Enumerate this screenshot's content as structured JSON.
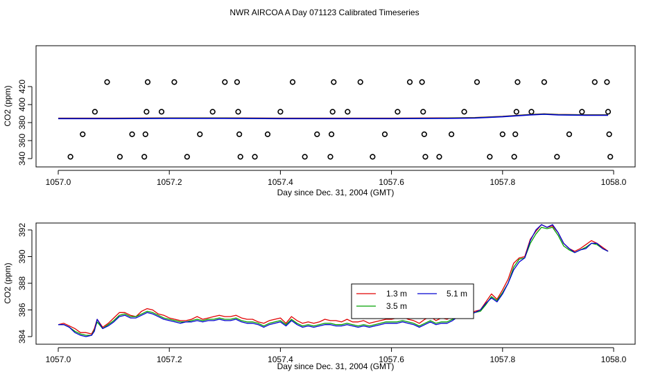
{
  "title": "NWR AIRCOA A  Day 071123  Calibrated Timeseries",
  "colors": {
    "red": "#e00000",
    "green": "#00a000",
    "blue": "#0000d0",
    "black": "#000000"
  },
  "chart_data": [
    {
      "type": "scatter",
      "xlabel": "Day since Dec. 31, 2004 (GMT)",
      "ylabel": "CO2 (ppm)",
      "xlim": [
        1057.0,
        1058.0
      ],
      "ylim": [
        340,
        420
      ],
      "xticks": [
        "1057.0",
        "1057.2",
        "1057.4",
        "1057.6",
        "1057.8",
        "1058.0"
      ],
      "yticks": [
        "340",
        "360",
        "380",
        "400",
        "420"
      ],
      "points": [
        {
          "x": 1057.022,
          "y": 342
        },
        {
          "x": 1057.044,
          "y": 367
        },
        {
          "x": 1057.066,
          "y": 392
        },
        {
          "x": 1057.088,
          "y": 425
        },
        {
          "x": 1057.111,
          "y": 342
        },
        {
          "x": 1057.133,
          "y": 367
        },
        {
          "x": 1057.155,
          "y": 342
        },
        {
          "x": 1057.157,
          "y": 367
        },
        {
          "x": 1057.159,
          "y": 392
        },
        {
          "x": 1057.161,
          "y": 425
        },
        {
          "x": 1057.186,
          "y": 392
        },
        {
          "x": 1057.209,
          "y": 425
        },
        {
          "x": 1057.232,
          "y": 342
        },
        {
          "x": 1057.255,
          "y": 367
        },
        {
          "x": 1057.278,
          "y": 392
        },
        {
          "x": 1057.3,
          "y": 425
        },
        {
          "x": 1057.322,
          "y": 425
        },
        {
          "x": 1057.324,
          "y": 392
        },
        {
          "x": 1057.326,
          "y": 367
        },
        {
          "x": 1057.328,
          "y": 342
        },
        {
          "x": 1057.354,
          "y": 342
        },
        {
          "x": 1057.377,
          "y": 367
        },
        {
          "x": 1057.4,
          "y": 392
        },
        {
          "x": 1057.422,
          "y": 425
        },
        {
          "x": 1057.444,
          "y": 342
        },
        {
          "x": 1057.466,
          "y": 367
        },
        {
          "x": 1057.49,
          "y": 342
        },
        {
          "x": 1057.492,
          "y": 367
        },
        {
          "x": 1057.494,
          "y": 392
        },
        {
          "x": 1057.496,
          "y": 425
        },
        {
          "x": 1057.521,
          "y": 392
        },
        {
          "x": 1057.544,
          "y": 425
        },
        {
          "x": 1057.566,
          "y": 342
        },
        {
          "x": 1057.588,
          "y": 367
        },
        {
          "x": 1057.611,
          "y": 392
        },
        {
          "x": 1057.633,
          "y": 425
        },
        {
          "x": 1057.655,
          "y": 425
        },
        {
          "x": 1057.657,
          "y": 392
        },
        {
          "x": 1057.659,
          "y": 367
        },
        {
          "x": 1057.661,
          "y": 342
        },
        {
          "x": 1057.686,
          "y": 342
        },
        {
          "x": 1057.708,
          "y": 367
        },
        {
          "x": 1057.731,
          "y": 392
        },
        {
          "x": 1057.754,
          "y": 425
        },
        {
          "x": 1057.777,
          "y": 342
        },
        {
          "x": 1057.8,
          "y": 367
        },
        {
          "x": 1057.821,
          "y": 342
        },
        {
          "x": 1057.823,
          "y": 367
        },
        {
          "x": 1057.825,
          "y": 392
        },
        {
          "x": 1057.827,
          "y": 425
        },
        {
          "x": 1057.852,
          "y": 392
        },
        {
          "x": 1057.875,
          "y": 425
        },
        {
          "x": 1057.898,
          "y": 342
        },
        {
          "x": 1057.92,
          "y": 367
        },
        {
          "x": 1057.943,
          "y": 392
        },
        {
          "x": 1057.966,
          "y": 425
        },
        {
          "x": 1057.988,
          "y": 425
        },
        {
          "x": 1057.99,
          "y": 392
        },
        {
          "x": 1057.992,
          "y": 367
        },
        {
          "x": 1057.994,
          "y": 342
        }
      ],
      "line_x": [
        1057.0,
        1057.1,
        1057.2,
        1057.3,
        1057.4,
        1057.5,
        1057.6,
        1057.7,
        1057.75,
        1057.8,
        1057.85,
        1057.875,
        1057.9,
        1057.95,
        1057.99
      ],
      "line_y": [
        385,
        385,
        385.5,
        385.5,
        385,
        385,
        385,
        385.5,
        386,
        388,
        391,
        392,
        391,
        390.5,
        390.5
      ]
    },
    {
      "type": "line",
      "xlabel": "Day since Dec. 31, 2004 (GMT)",
      "ylabel": "CO2 (ppm)",
      "xlim": [
        1057.0,
        1058.0
      ],
      "ylim": [
        383.8,
        393.0
      ],
      "xticks": [
        "1057.0",
        "1057.2",
        "1057.4",
        "1057.6",
        "1057.8",
        "1058.0"
      ],
      "yticks": [
        "384",
        "386",
        "388",
        "390",
        "392"
      ],
      "legend_position": "center-right",
      "x": [
        1057.0,
        1057.01,
        1057.02,
        1057.03,
        1057.04,
        1057.05,
        1057.06,
        1057.065,
        1057.07,
        1057.08,
        1057.09,
        1057.1,
        1057.11,
        1057.12,
        1057.13,
        1057.14,
        1057.15,
        1057.16,
        1057.17,
        1057.18,
        1057.19,
        1057.2,
        1057.21,
        1057.22,
        1057.23,
        1057.24,
        1057.25,
        1057.26,
        1057.27,
        1057.28,
        1057.29,
        1057.3,
        1057.31,
        1057.32,
        1057.33,
        1057.34,
        1057.35,
        1057.36,
        1057.37,
        1057.38,
        1057.39,
        1057.4,
        1057.41,
        1057.42,
        1057.43,
        1057.44,
        1057.45,
        1057.46,
        1057.47,
        1057.48,
        1057.49,
        1057.5,
        1057.51,
        1057.52,
        1057.53,
        1057.54,
        1057.55,
        1057.56,
        1057.57,
        1057.58,
        1057.59,
        1057.6,
        1057.61,
        1057.62,
        1057.63,
        1057.64,
        1057.65,
        1057.66,
        1057.67,
        1057.68,
        1057.69,
        1057.7,
        1057.71,
        1057.72,
        1057.73,
        1057.74,
        1057.75,
        1057.76,
        1057.77,
        1057.78,
        1057.79,
        1057.8,
        1057.81,
        1057.82,
        1057.83,
        1057.84,
        1057.85,
        1057.86,
        1057.87,
        1057.88,
        1057.89,
        1057.9,
        1057.91,
        1057.92,
        1057.93,
        1057.94,
        1057.95,
        1057.96,
        1057.97,
        1057.98,
        1057.99
      ],
      "series": [
        {
          "name": "1.3 m",
          "color": "#e00000",
          "values": [
            384.9,
            385.0,
            384.8,
            384.6,
            384.3,
            384.3,
            384.2,
            384.6,
            385.3,
            384.7,
            385.0,
            385.4,
            385.8,
            385.8,
            385.6,
            385.5,
            385.9,
            386.1,
            386.0,
            385.7,
            385.6,
            385.4,
            385.3,
            385.2,
            385.2,
            385.3,
            385.5,
            385.3,
            385.4,
            385.5,
            385.6,
            385.5,
            385.5,
            385.6,
            385.4,
            385.3,
            385.3,
            385.1,
            385.0,
            385.2,
            385.3,
            385.4,
            385.0,
            385.5,
            385.2,
            385.0,
            385.1,
            385.0,
            385.1,
            385.3,
            385.2,
            385.2,
            385.1,
            385.3,
            385.1,
            385.1,
            385.2,
            385.0,
            385.1,
            385.2,
            385.3,
            385.3,
            385.4,
            385.5,
            385.3,
            385.2,
            385.0,
            385.3,
            385.5,
            385.2,
            385.4,
            385.3,
            385.5,
            385.6,
            385.8,
            385.7,
            385.9,
            386.0,
            386.6,
            387.2,
            386.8,
            387.5,
            388.3,
            389.5,
            389.9,
            390.0,
            391.3,
            391.9,
            392.4,
            392.2,
            392.3,
            391.8,
            391.0,
            390.6,
            390.4,
            390.6,
            390.9,
            391.2,
            391.0,
            390.7,
            390.4
          ]
        },
        {
          "name": "3.5 m",
          "color": "#00a000",
          "values": [
            384.9,
            384.9,
            384.7,
            384.4,
            384.2,
            384.1,
            384.1,
            384.5,
            385.1,
            384.6,
            384.9,
            385.2,
            385.6,
            385.7,
            385.5,
            385.5,
            385.7,
            385.9,
            385.8,
            385.6,
            385.4,
            385.3,
            385.2,
            385.1,
            385.1,
            385.2,
            385.3,
            385.2,
            385.3,
            385.3,
            385.4,
            385.3,
            385.3,
            385.4,
            385.2,
            385.1,
            385.1,
            385.0,
            384.8,
            385.0,
            385.1,
            385.2,
            384.9,
            385.3,
            385.0,
            384.8,
            384.9,
            384.8,
            384.9,
            385.0,
            385.0,
            384.9,
            384.9,
            385.0,
            384.9,
            384.8,
            384.9,
            384.8,
            384.9,
            385.0,
            385.1,
            385.1,
            385.1,
            385.2,
            385.1,
            385.0,
            384.8,
            385.0,
            385.2,
            385.0,
            385.1,
            385.1,
            385.3,
            385.5,
            385.7,
            385.6,
            385.8,
            385.9,
            386.4,
            387.0,
            386.7,
            387.3,
            388.0,
            389.2,
            389.8,
            389.9,
            391.0,
            391.7,
            392.2,
            392.1,
            392.2,
            391.6,
            390.8,
            390.5,
            390.3,
            390.5,
            390.7,
            391.0,
            390.9,
            390.6,
            390.4
          ]
        },
        {
          "name": "5.1 m",
          "color": "#0000d0",
          "values": [
            384.9,
            384.9,
            384.7,
            384.3,
            384.1,
            384.0,
            384.1,
            384.4,
            385.3,
            384.6,
            384.8,
            385.1,
            385.5,
            385.6,
            385.4,
            385.4,
            385.6,
            385.8,
            385.7,
            385.5,
            385.3,
            385.2,
            385.1,
            385.0,
            385.1,
            385.1,
            385.2,
            385.1,
            385.2,
            385.2,
            385.3,
            385.2,
            385.2,
            385.3,
            385.1,
            385.0,
            385.0,
            384.9,
            384.7,
            384.9,
            385.0,
            385.1,
            384.8,
            385.2,
            384.9,
            384.7,
            384.8,
            384.7,
            384.8,
            384.9,
            384.9,
            384.8,
            384.8,
            384.9,
            384.8,
            384.7,
            384.8,
            384.7,
            384.8,
            384.9,
            385.0,
            385.0,
            385.0,
            385.1,
            385.0,
            384.9,
            384.7,
            384.9,
            385.1,
            384.9,
            385.0,
            385.0,
            385.2,
            385.5,
            385.7,
            385.7,
            385.8,
            386.0,
            386.5,
            386.9,
            386.6,
            387.2,
            388.0,
            389.0,
            389.6,
            389.9,
            391.2,
            392.0,
            392.4,
            392.2,
            392.4,
            391.8,
            391.0,
            390.6,
            390.3,
            390.5,
            390.6,
            391.0,
            391.0,
            390.6,
            390.4
          ]
        }
      ]
    }
  ]
}
